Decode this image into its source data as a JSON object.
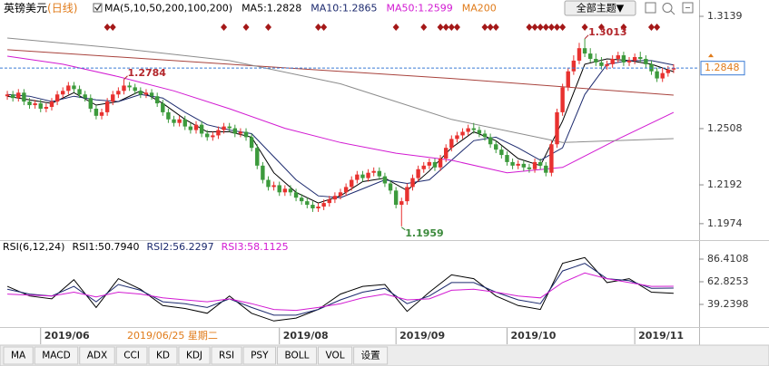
{
  "header": {
    "button": "全部主题▼"
  },
  "tabs": [
    "MA",
    "MACD",
    "ADX",
    "CCI",
    "KD",
    "KDJ",
    "RSI",
    "PSY",
    "BOLL",
    "VOL",
    "设置"
  ],
  "chart_data": [
    {
      "type": "candlestick",
      "title": "英镑美元",
      "period": "(日线)",
      "indicator": "MA(5,10,50,200,100,200)",
      "cursor_label": "2019/06/25 星期二",
      "xlim": [
        -0.5,
        120.5
      ],
      "xticks": [
        {
          "value": 6,
          "label": "2019/06"
        },
        {
          "value": 49,
          "label": "2019/08"
        },
        {
          "value": 70,
          "label": "2019/09"
        },
        {
          "value": 90,
          "label": "2019/10"
        },
        {
          "value": 113,
          "label": "2019/11"
        }
      ],
      "ylim": [
        1.1897,
        1.319
      ],
      "yticks": [
        1.3139,
        1.2508,
        1.2192,
        1.1974
      ],
      "grid": false,
      "up_color": "#e8312f",
      "down_color": "#3c9a3c",
      "candles": {
        "open": [
          1.269,
          1.27,
          1.268,
          1.271,
          1.266,
          1.264,
          1.265,
          1.262,
          1.263,
          1.266,
          1.27,
          1.272,
          1.275,
          1.273,
          1.27,
          1.268,
          1.262,
          1.258,
          1.26,
          1.266,
          1.27,
          1.272,
          1.275,
          1.274,
          1.272,
          1.27,
          1.271,
          1.269,
          1.265,
          1.26,
          1.256,
          1.254,
          1.256,
          1.252,
          1.25,
          1.253,
          1.248,
          1.246,
          1.247,
          1.25,
          1.252,
          1.251,
          1.248,
          1.249,
          1.246,
          1.24,
          1.23,
          1.222,
          1.218,
          1.219,
          1.215,
          1.217,
          1.215,
          1.212,
          1.21,
          1.208,
          1.206,
          1.207,
          1.209,
          1.211,
          1.213,
          1.215,
          1.218,
          1.222,
          1.225,
          1.223,
          1.226,
          1.227,
          1.224,
          1.22,
          1.216,
          1.208,
          1.21,
          1.218,
          1.223,
          1.228,
          1.23,
          1.232,
          1.229,
          1.234,
          1.24,
          1.245,
          1.247,
          1.249,
          1.251,
          1.25,
          1.248,
          1.246,
          1.242,
          1.239,
          1.236,
          1.232,
          1.23,
          1.231,
          1.229,
          1.228,
          1.232,
          1.23,
          1.226,
          1.242,
          1.26,
          1.274,
          1.283,
          1.289,
          1.296,
          1.293,
          1.29,
          1.288,
          1.286,
          1.287,
          1.29,
          1.292,
          1.288,
          1.289,
          1.291,
          1.29,
          1.287,
          1.283,
          1.279,
          1.282,
          1.284
        ],
        "high": [
          1.272,
          1.272,
          1.273,
          1.273,
          1.268,
          1.267,
          1.267,
          1.265,
          1.268,
          1.272,
          1.274,
          1.277,
          1.277,
          1.275,
          1.272,
          1.27,
          1.264,
          1.262,
          1.268,
          1.272,
          1.274,
          1.2784,
          1.277,
          1.276,
          1.274,
          1.273,
          1.273,
          1.271,
          1.267,
          1.262,
          1.258,
          1.258,
          1.258,
          1.254,
          1.255,
          1.255,
          1.25,
          1.249,
          1.252,
          1.254,
          1.254,
          1.253,
          1.251,
          1.251,
          1.248,
          1.242,
          1.232,
          1.224,
          1.221,
          1.221,
          1.219,
          1.219,
          1.217,
          1.214,
          1.212,
          1.21,
          1.209,
          1.211,
          1.213,
          1.215,
          1.217,
          1.22,
          1.224,
          1.227,
          1.227,
          1.228,
          1.229,
          1.229,
          1.226,
          1.222,
          1.218,
          1.212,
          1.22,
          1.225,
          1.23,
          1.232,
          1.234,
          1.234,
          1.236,
          1.242,
          1.247,
          1.249,
          1.251,
          1.253,
          1.254,
          1.252,
          1.25,
          1.248,
          1.244,
          1.241,
          1.238,
          1.234,
          1.233,
          1.233,
          1.231,
          1.234,
          1.234,
          1.232,
          1.244,
          1.262,
          1.276,
          1.285,
          1.292,
          1.299,
          1.3013,
          1.296,
          1.293,
          1.291,
          1.289,
          1.292,
          1.294,
          1.294,
          1.291,
          1.293,
          1.294,
          1.292,
          1.289,
          1.285,
          1.285,
          1.286,
          1.287
        ],
        "low": [
          1.267,
          1.266,
          1.266,
          1.264,
          1.262,
          1.262,
          1.26,
          1.26,
          1.261,
          1.264,
          1.268,
          1.27,
          1.271,
          1.268,
          1.266,
          1.26,
          1.256,
          1.256,
          1.258,
          1.264,
          1.268,
          1.27,
          1.272,
          1.27,
          1.268,
          1.268,
          1.267,
          1.263,
          1.258,
          1.254,
          1.252,
          1.252,
          1.25,
          1.248,
          1.248,
          1.246,
          1.244,
          1.244,
          1.245,
          1.248,
          1.249,
          1.246,
          1.246,
          1.244,
          1.238,
          1.228,
          1.22,
          1.216,
          1.216,
          1.213,
          1.213,
          1.213,
          1.21,
          1.208,
          1.206,
          1.204,
          1.204,
          1.205,
          1.207,
          1.209,
          1.211,
          1.213,
          1.216,
          1.22,
          1.221,
          1.221,
          1.224,
          1.222,
          1.218,
          1.214,
          1.206,
          1.1959,
          1.208,
          1.216,
          1.221,
          1.226,
          1.228,
          1.227,
          1.227,
          1.232,
          1.238,
          1.243,
          1.245,
          1.247,
          1.248,
          1.246,
          1.244,
          1.24,
          1.237,
          1.234,
          1.23,
          1.228,
          1.228,
          1.227,
          1.226,
          1.226,
          1.228,
          1.224,
          1.224,
          1.24,
          1.258,
          1.272,
          1.281,
          1.287,
          1.291,
          1.288,
          1.286,
          1.284,
          1.284,
          1.285,
          1.288,
          1.286,
          1.286,
          1.287,
          1.288,
          1.285,
          1.281,
          1.277,
          1.277,
          1.28,
          1.282
        ],
        "close": [
          1.27,
          1.268,
          1.271,
          1.266,
          1.264,
          1.265,
          1.262,
          1.263,
          1.266,
          1.27,
          1.272,
          1.275,
          1.273,
          1.27,
          1.268,
          1.262,
          1.258,
          1.26,
          1.266,
          1.27,
          1.272,
          1.275,
          1.274,
          1.272,
          1.27,
          1.271,
          1.269,
          1.265,
          1.26,
          1.256,
          1.254,
          1.256,
          1.252,
          1.25,
          1.253,
          1.248,
          1.246,
          1.247,
          1.25,
          1.252,
          1.251,
          1.248,
          1.249,
          1.246,
          1.24,
          1.23,
          1.222,
          1.218,
          1.219,
          1.215,
          1.217,
          1.215,
          1.212,
          1.21,
          1.208,
          1.206,
          1.207,
          1.209,
          1.211,
          1.213,
          1.215,
          1.218,
          1.222,
          1.225,
          1.223,
          1.226,
          1.227,
          1.224,
          1.22,
          1.216,
          1.208,
          1.21,
          1.218,
          1.223,
          1.228,
          1.23,
          1.232,
          1.229,
          1.234,
          1.24,
          1.245,
          1.247,
          1.249,
          1.251,
          1.25,
          1.248,
          1.246,
          1.242,
          1.239,
          1.236,
          1.232,
          1.23,
          1.231,
          1.229,
          1.228,
          1.232,
          1.23,
          1.226,
          1.242,
          1.26,
          1.274,
          1.283,
          1.289,
          1.296,
          1.293,
          1.29,
          1.288,
          1.286,
          1.287,
          1.29,
          1.292,
          1.288,
          1.289,
          1.291,
          1.29,
          1.287,
          1.283,
          1.279,
          1.282,
          1.284,
          1.2848
        ]
      },
      "lines": [
        {
          "name": "MA5:1.2828",
          "color": "#000000",
          "x": [
            0,
            4,
            8,
            12,
            16,
            20,
            24,
            28,
            32,
            36,
            40,
            44,
            48,
            52,
            56,
            60,
            64,
            68,
            72,
            76,
            80,
            84,
            88,
            92,
            96,
            100,
            104,
            108,
            112,
            116,
            120
          ],
          "values": [
            1.269,
            1.267,
            1.265,
            1.271,
            1.264,
            1.266,
            1.272,
            1.265,
            1.256,
            1.249,
            1.249,
            1.246,
            1.226,
            1.215,
            1.209,
            1.213,
            1.221,
            1.223,
            1.216,
            1.227,
            1.24,
            1.249,
            1.244,
            1.234,
            1.23,
            1.255,
            1.287,
            1.29,
            1.289,
            1.287,
            1.2828
          ]
        },
        {
          "name": "MA10:1.2865",
          "color": "#1c2a6e",
          "x": [
            0,
            4,
            8,
            12,
            16,
            20,
            24,
            28,
            32,
            36,
            40,
            44,
            48,
            52,
            56,
            60,
            64,
            68,
            72,
            76,
            80,
            84,
            88,
            92,
            96,
            100,
            104,
            108,
            112,
            116,
            120
          ],
          "values": [
            1.27,
            1.269,
            1.266,
            1.269,
            1.267,
            1.266,
            1.27,
            1.268,
            1.26,
            1.253,
            1.25,
            1.248,
            1.235,
            1.222,
            1.213,
            1.212,
            1.217,
            1.222,
            1.22,
            1.222,
            1.233,
            1.244,
            1.246,
            1.24,
            1.233,
            1.24,
            1.27,
            1.287,
            1.289,
            1.289,
            1.2865
          ]
        },
        {
          "name": "MA50:1.2599",
          "color": "#d21ad2",
          "x": [
            0,
            10,
            20,
            30,
            40,
            50,
            60,
            70,
            80,
            90,
            100,
            110,
            120
          ],
          "values": [
            1.2915,
            1.287,
            1.28,
            1.272,
            1.262,
            1.251,
            1.243,
            1.237,
            1.233,
            1.226,
            1.229,
            1.245,
            1.2599
          ]
        },
        {
          "name": "MA200",
          "color": "#e07b1a",
          "line_color": "#a8423c",
          "x": [
            0,
            40,
            80,
            120
          ],
          "values": [
            1.2951,
            1.287,
            1.279,
            1.2696
          ]
        },
        {
          "color": "#8c8c8c",
          "x": [
            0,
            20,
            40,
            60,
            80,
            100,
            120
          ],
          "values": [
            1.3017,
            1.296,
            1.289,
            1.276,
            1.256,
            1.243,
            1.2452
          ]
        }
      ],
      "signals": {
        "color": "#a41818",
        "x": [
          18,
          19,
          39,
          43,
          47,
          56,
          57,
          70,
          75,
          78,
          79,
          80,
          81,
          86,
          87,
          88,
          94,
          95,
          96,
          97,
          98,
          99,
          100,
          104,
          107,
          111,
          116,
          117
        ]
      },
      "annotations": [
        {
          "x": 104,
          "value": 1.3013,
          "placement": "above",
          "color": "#b3262b"
        },
        {
          "x": 21,
          "value": 1.2784,
          "placement": "above",
          "color": "#b3262b"
        },
        {
          "x": 71,
          "value": 1.1959,
          "placement": "below",
          "color": "#3c8a3c"
        }
      ]
    },
    {
      "type": "line",
      "title": "RSI(6,12,24)",
      "xlim": [
        -0.5,
        120.5
      ],
      "x": [
        0,
        4,
        8,
        12,
        16,
        20,
        24,
        28,
        32,
        36,
        40,
        44,
        48,
        52,
        56,
        60,
        64,
        68,
        72,
        76,
        80,
        84,
        88,
        92,
        96,
        100,
        104,
        108,
        112,
        116,
        120
      ],
      "ylim": [
        18.5,
        99.6
      ],
      "yticks": [
        86.4108,
        62.8253,
        39.2398
      ],
      "series": [
        {
          "name": "RSI1:50.7940",
          "color": "#000000",
          "values": [
            58,
            48,
            45,
            65,
            36,
            66,
            55,
            38,
            35,
            30,
            48,
            30,
            22,
            25,
            34,
            50,
            58,
            60,
            32,
            52,
            70,
            66,
            48,
            38,
            34,
            82,
            88,
            62,
            66,
            52,
            50.794
          ]
        },
        {
          "name": "RSI2:56.2297",
          "color": "#1c2a6e",
          "values": [
            55,
            50,
            48,
            58,
            42,
            60,
            54,
            42,
            40,
            36,
            45,
            36,
            28,
            28,
            34,
            44,
            52,
            56,
            40,
            48,
            62,
            62,
            52,
            44,
            40,
            74,
            82,
            66,
            64,
            56,
            56.2297
          ]
        },
        {
          "name": "RSI3:58.1125",
          "color": "#d21ad2",
          "values": [
            50,
            49,
            48,
            52,
            47,
            52,
            50,
            46,
            44,
            42,
            45,
            40,
            34,
            33,
            36,
            40,
            46,
            50,
            44,
            45,
            54,
            55,
            52,
            48,
            46,
            62,
            72,
            66,
            62,
            58,
            58.1125
          ]
        }
      ]
    }
  ]
}
